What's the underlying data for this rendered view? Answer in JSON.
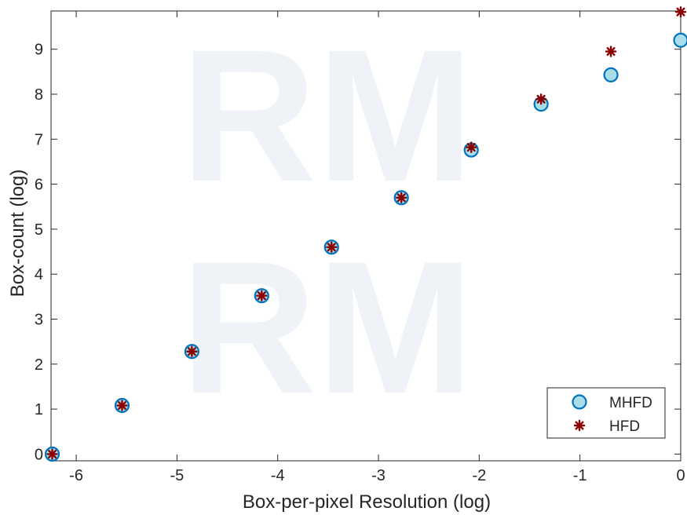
{
  "chart_data": {
    "type": "scatter",
    "title": "",
    "xlabel": "Box-per-pixel Resolution (log)",
    "ylabel": "Box-count (log)",
    "xlim": [
      -6.25,
      0
    ],
    "ylim": [
      -0.15,
      9.85
    ],
    "xticks": [
      -6,
      -5,
      -4,
      -3,
      -2,
      -1,
      0
    ],
    "yticks": [
      0,
      1,
      2,
      3,
      4,
      5,
      6,
      7,
      8,
      9
    ],
    "grid": false,
    "legend_position": "bottom-right",
    "series": [
      {
        "name": "MHFD",
        "marker": "circle",
        "x": [
          -6.238,
          -5.545,
          -4.852,
          -4.159,
          -3.466,
          -2.773,
          -2.079,
          -1.386,
          -0.693,
          0.0
        ],
        "y": [
          0.0,
          1.08,
          2.28,
          3.52,
          4.6,
          5.7,
          6.76,
          7.78,
          8.43,
          9.2
        ]
      },
      {
        "name": "HFD",
        "marker": "asterisk",
        "x": [
          -6.238,
          -5.545,
          -4.852,
          -4.159,
          -3.466,
          -2.773,
          -2.079,
          -1.386,
          -0.693,
          0.0
        ],
        "y": [
          0.0,
          1.08,
          2.28,
          3.52,
          4.6,
          5.7,
          6.82,
          7.89,
          8.95,
          9.83
        ]
      }
    ]
  },
  "colors": {
    "mhfd_fill": "#a8dde9",
    "mhfd_edge": "#0072bd",
    "hfd": "#8b0000",
    "axis": "#262626",
    "watermark": "#e6ecf2"
  }
}
